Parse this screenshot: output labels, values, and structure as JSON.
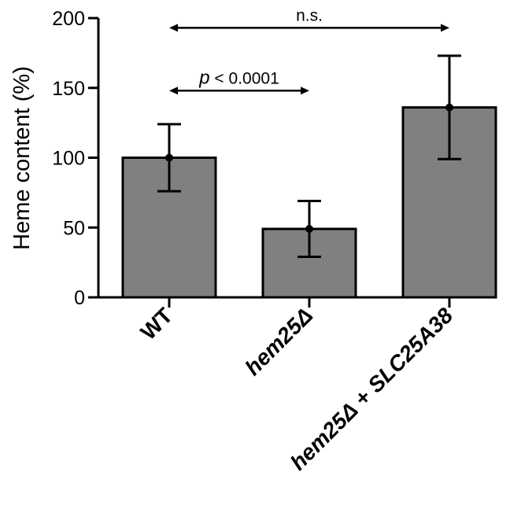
{
  "chart_data": {
    "type": "bar",
    "ylabel": "Heme content (%)",
    "ylim": [
      0,
      200
    ],
    "yticks": [
      0,
      50,
      100,
      150,
      200
    ],
    "categories": [
      "WT",
      "hem25Δ",
      "hem25Δ + SLC25A38"
    ],
    "category_parts": [
      [
        {
          "text": "WT",
          "italic": false
        }
      ],
      [
        {
          "text": "hem25Δ",
          "italic": true
        }
      ],
      [
        {
          "text": "hem25Δ",
          "italic": true
        },
        {
          "text": " + ",
          "italic": false
        },
        {
          "text": "SLC25A38",
          "italic": true
        }
      ]
    ],
    "values": [
      100,
      49,
      136
    ],
    "errors": [
      24,
      20,
      37
    ],
    "bar_color": "#808080",
    "annotations": [
      {
        "from": 0,
        "to": 1,
        "y": 148,
        "label_prefix": "p",
        "label": " < 0.0001"
      },
      {
        "from": 0,
        "to": 2,
        "y": 193,
        "label_prefix": "",
        "label": "n.s."
      }
    ]
  }
}
